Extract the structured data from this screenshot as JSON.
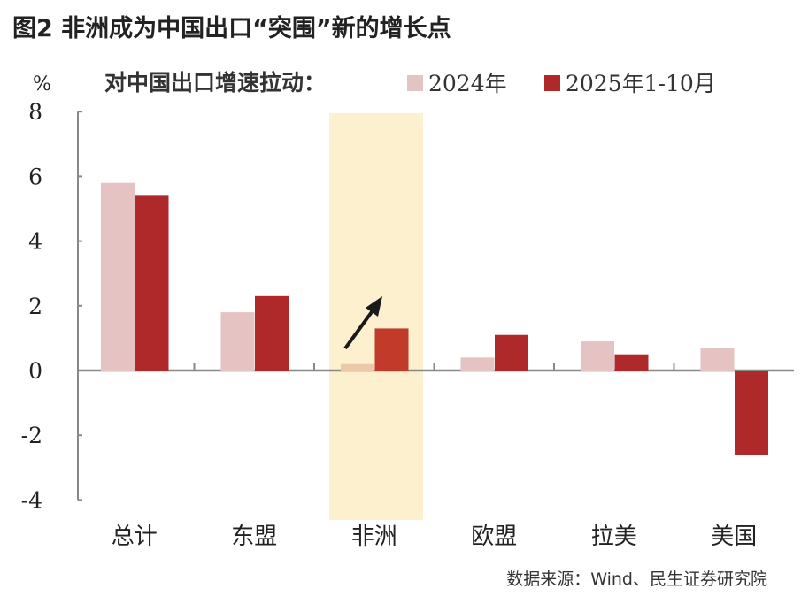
{
  "title": "图2  非洲成为中国出口“突围”新的增长点",
  "source": "数据来源：Wind、民生证券研究院",
  "chart_data": {
    "type": "bar",
    "title": "对中国出口增速拉动：",
    "ylabel": "%",
    "ylim": [
      -4,
      8
    ],
    "yticks": [
      8,
      6,
      4,
      2,
      0,
      -2,
      -4
    ],
    "categories": [
      "总计",
      "东盟",
      "非洲",
      "欧盟",
      "拉美",
      "美国"
    ],
    "highlight_category": "非洲",
    "series": [
      {
        "name": "2024年",
        "color": "#e6c3c3",
        "values": [
          5.8,
          1.8,
          0.2,
          0.4,
          0.9,
          0.7
        ]
      },
      {
        "name": "2025年1-10月",
        "color": "#b0292a",
        "values": [
          5.4,
          2.3,
          1.3,
          1.1,
          0.5,
          -2.6
        ]
      }
    ],
    "colors": {
      "highlight": "#fcf0cf",
      "axis": "#888888",
      "arrow": "#1a1a1a"
    }
  }
}
